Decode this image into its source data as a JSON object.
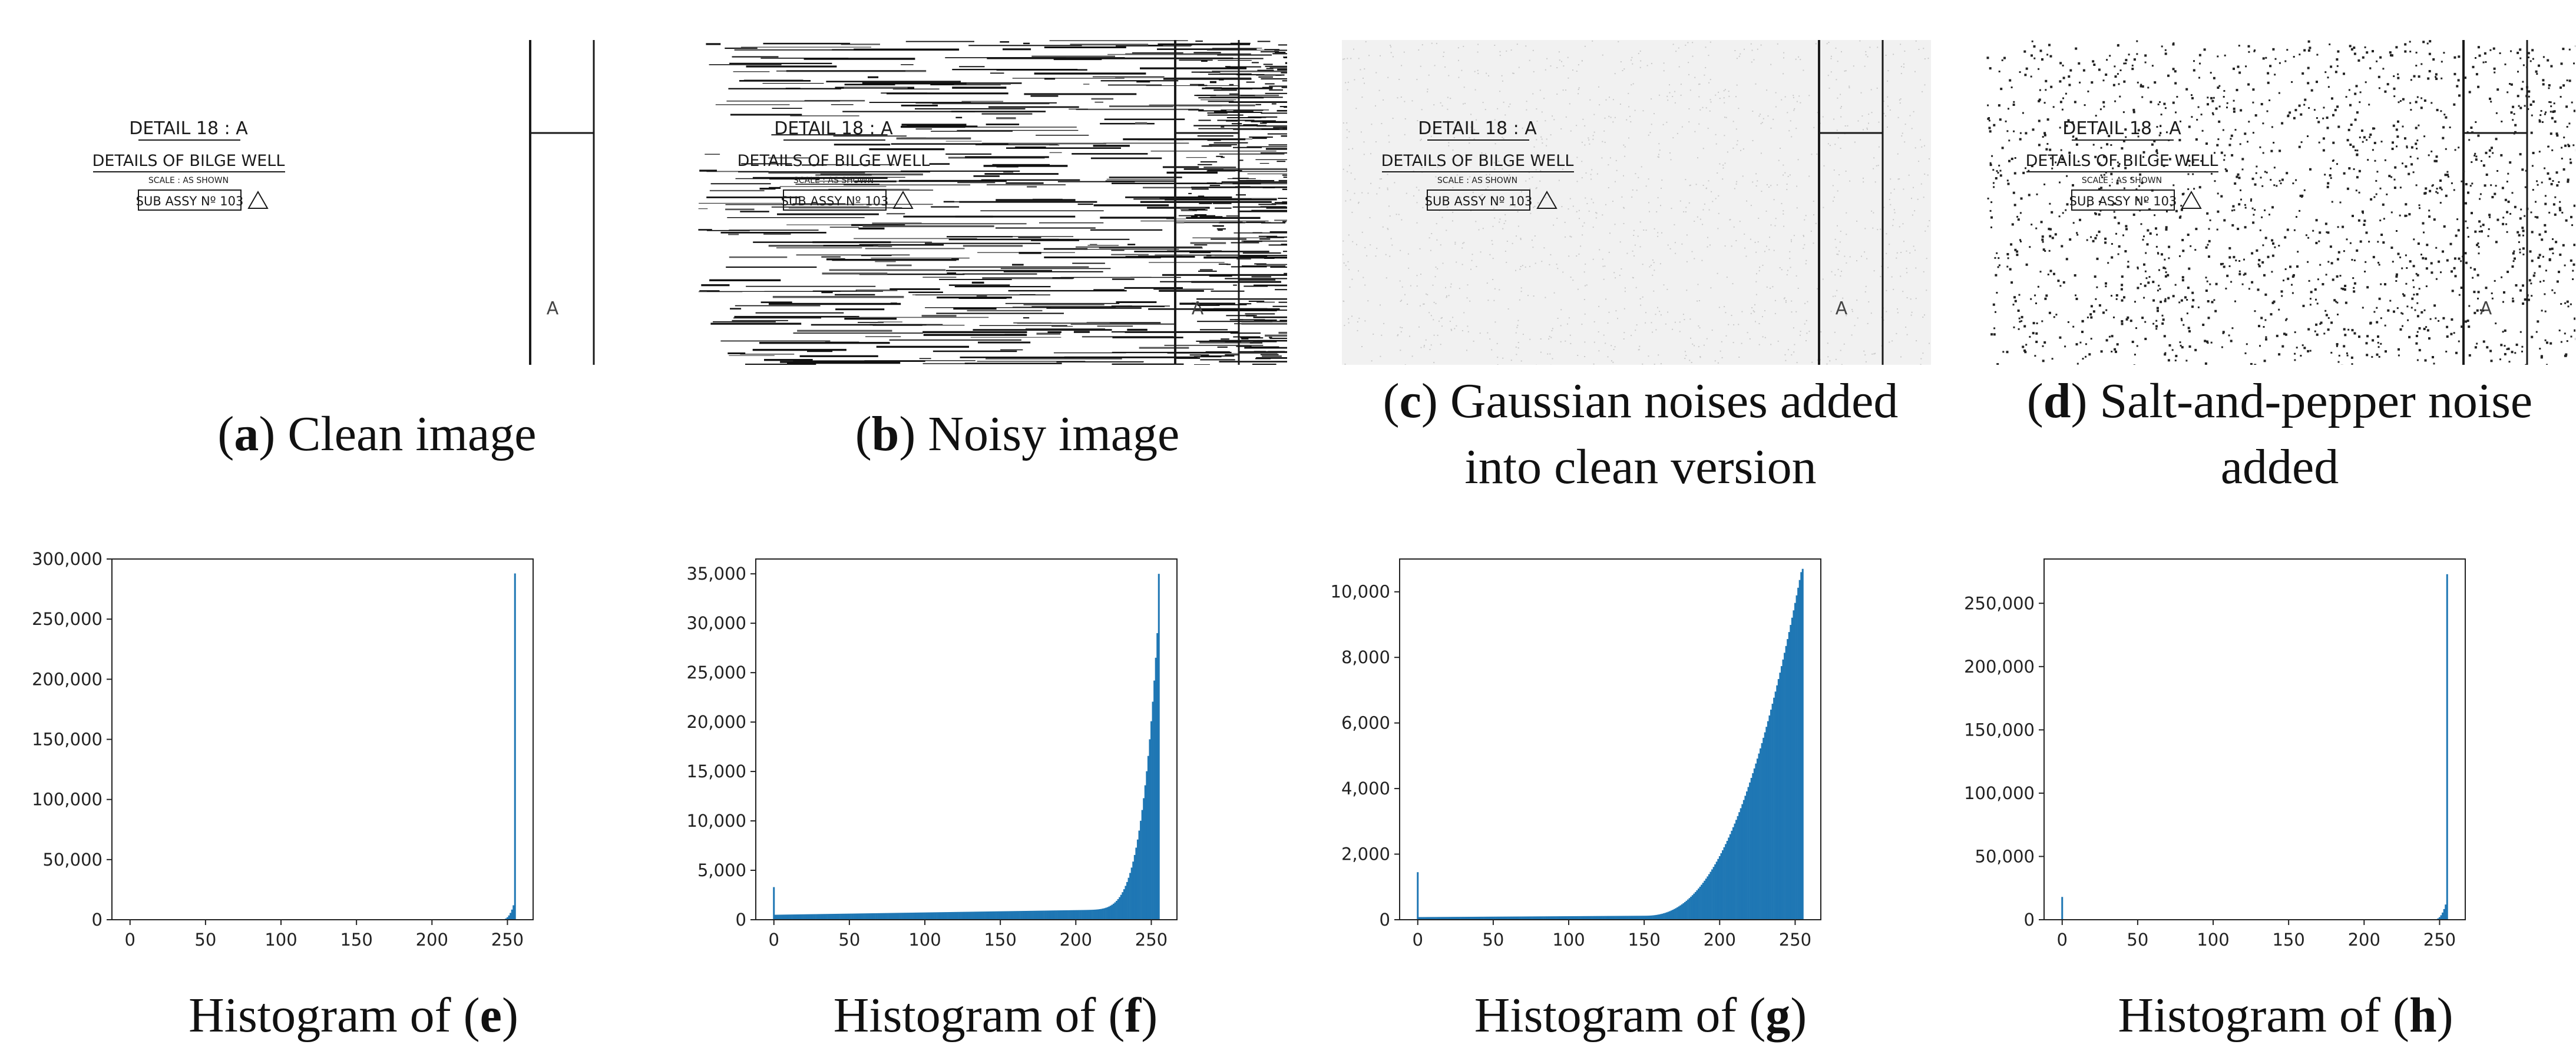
{
  "panels": [
    {
      "letter": "a",
      "label": "Clean image",
      "drawing": {
        "title": "DETAIL 18 : A",
        "subtitle": "DETAILS OF BILGE WELL",
        "scale": "SCALE : AS SHOWN",
        "assy": "SUB  ASSY Nº 103",
        "marker": "A"
      }
    },
    {
      "letter": "b",
      "label": "Noisy image",
      "drawing": {
        "title": "DETAIL 18 : A",
        "subtitle": "DETAILS OF BILGE WELL",
        "scale": "SCALE : AS SHOWN",
        "assy": "SUB  ASSY Nº 103",
        "marker": "A"
      }
    },
    {
      "letter": "c",
      "label": "Gaussian noises added",
      "label_line2": "into clean version",
      "drawing": {
        "title": "DETAIL 18 : A",
        "subtitle": "DETAILS OF BILGE WELL",
        "scale": "SCALE : AS SHOWN",
        "assy": "SUB  ASSY Nº 103",
        "marker": "A"
      }
    },
    {
      "letter": "d",
      "label": "Salt-and-pepper noise",
      "label_line2": "added",
      "drawing": {
        "title": "DETAIL 18 : A",
        "subtitle": "DETAILS OF BILGE WELL",
        "scale": "SCALE : AS SHOWN",
        "assy": "SUB  ASSY Nº 103",
        "marker": "A"
      }
    }
  ],
  "histogram_caption_prefix": "Histogram of (",
  "histogram_caption_suffix": ")",
  "colors": {
    "bar": "#1f77b4",
    "axis": "#222222"
  },
  "chart_data": [
    {
      "type": "bar",
      "caption_letter": "e",
      "xlim": [
        -12,
        267
      ],
      "ylim": [
        0,
        300000
      ],
      "xticks": [
        0,
        50,
        100,
        150,
        200,
        250
      ],
      "yticks": [
        0,
        50000,
        100000,
        150000,
        200000,
        250000,
        300000
      ],
      "ytick_labels": [
        "0",
        "50,000",
        "100,000",
        "150,000",
        "200,000",
        "250,000",
        "300,000"
      ],
      "shape": "flat-spike",
      "base": 600,
      "ramp_start": 245,
      "ramp_peak": 12000,
      "spike_value": 288000,
      "zero_spike": 0,
      "grid": false
    },
    {
      "type": "bar",
      "caption_letter": "f",
      "xlim": [
        -12,
        267
      ],
      "ylim": [
        0,
        36500
      ],
      "xticks": [
        0,
        50,
        100,
        150,
        200,
        250
      ],
      "yticks": [
        0,
        5000,
        10000,
        15000,
        20000,
        25000,
        30000,
        35000
      ],
      "ytick_labels": [
        "0",
        "5,000",
        "10,000",
        "15,000",
        "20,000",
        "25,000",
        "30,000",
        "35,000"
      ],
      "shape": "exp-rise",
      "base_start": 500,
      "base_end": 1100,
      "ramp_start": 200,
      "ramp_peak": 29000,
      "spike_value": 35000,
      "zero_spike": 3300,
      "grid": false
    },
    {
      "type": "bar",
      "caption_letter": "g",
      "xlim": [
        -12,
        267
      ],
      "ylim": [
        0,
        11000
      ],
      "xticks": [
        0,
        50,
        100,
        150,
        200,
        250
      ],
      "yticks": [
        0,
        2000,
        4000,
        6000,
        8000,
        10000
      ],
      "ytick_labels": [
        "0",
        "2,000",
        "4,000",
        "6,000",
        "8,000",
        "10,000"
      ],
      "shape": "gauss-rise",
      "base_start": 80,
      "base_end": 150,
      "ramp_start": 150,
      "ramp_peak": 10600,
      "spike_value": 10700,
      "zero_spike": 1450,
      "grid": false
    },
    {
      "type": "bar",
      "caption_letter": "h",
      "xlim": [
        -12,
        267
      ],
      "ylim": [
        0,
        285000
      ],
      "xticks": [
        0,
        50,
        100,
        150,
        200,
        250
      ],
      "yticks": [
        0,
        50000,
        100000,
        150000,
        200000,
        250000
      ],
      "ytick_labels": [
        "0",
        "50,000",
        "100,000",
        "150,000",
        "200,000",
        "250,000"
      ],
      "shape": "flat-spike",
      "base": 600,
      "ramp_start": 245,
      "ramp_peak": 12000,
      "spike_value": 273000,
      "zero_spike": 18000,
      "grid": false
    }
  ]
}
